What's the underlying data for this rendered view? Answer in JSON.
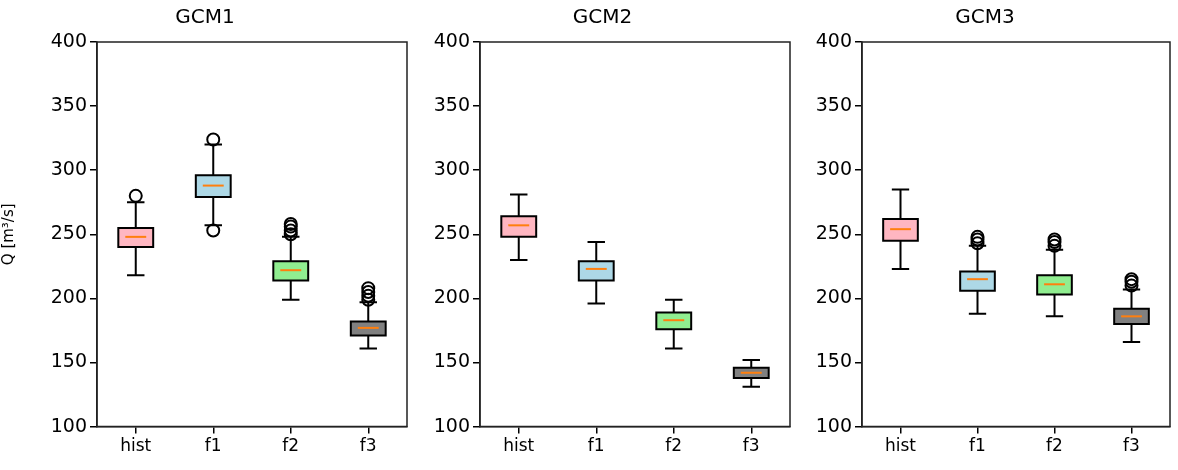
{
  "chart_data": [
    {
      "type": "box",
      "title": "GCM1",
      "ylabel": "Q [m³/s]",
      "categories": [
        "hist",
        "f1",
        "f2",
        "f3"
      ],
      "colors": [
        "#ffb6c1",
        "#add8e6",
        "#90ee90",
        "#808080"
      ],
      "ylim": [
        100,
        400
      ],
      "yticks": [
        100,
        150,
        200,
        250,
        300,
        350,
        400
      ],
      "grid": false,
      "boxes": [
        {
          "low": 218,
          "q1": 240,
          "median": 248,
          "q3": 255,
          "high": 275,
          "outliers": [
            280
          ]
        },
        {
          "low": 257,
          "q1": 279,
          "median": 288,
          "q3": 296,
          "high": 320,
          "outliers": [
            253,
            324
          ]
        },
        {
          "low": 199,
          "q1": 214,
          "median": 222,
          "q3": 229,
          "high": 248,
          "outliers": [
            250,
            253,
            256,
            258
          ]
        },
        {
          "low": 161,
          "q1": 171,
          "median": 177,
          "q3": 182,
          "high": 197,
          "outliers": [
            199,
            202,
            205,
            208
          ]
        }
      ]
    },
    {
      "type": "box",
      "title": "GCM2",
      "categories": [
        "hist",
        "f1",
        "f2",
        "f3"
      ],
      "colors": [
        "#ffb6c1",
        "#add8e6",
        "#90ee90",
        "#808080"
      ],
      "ylim": [
        100,
        400
      ],
      "yticks": [
        100,
        150,
        200,
        250,
        300,
        350,
        400
      ],
      "grid": false,
      "boxes": [
        {
          "low": 230,
          "q1": 248,
          "median": 257,
          "q3": 264,
          "high": 281
        },
        {
          "low": 196,
          "q1": 214,
          "median": 223,
          "q3": 229,
          "high": 244
        },
        {
          "low": 161,
          "q1": 176,
          "median": 183,
          "q3": 189,
          "high": 199
        },
        {
          "low": 131,
          "q1": 138,
          "median": 142,
          "q3": 146,
          "high": 152
        }
      ]
    },
    {
      "type": "box",
      "title": "GCM3",
      "categories": [
        "hist",
        "f1",
        "f2",
        "f3"
      ],
      "colors": [
        "#ffb6c1",
        "#add8e6",
        "#90ee90",
        "#808080"
      ],
      "ylim": [
        100,
        400
      ],
      "yticks": [
        100,
        150,
        200,
        250,
        300,
        350,
        400
      ],
      "grid": false,
      "boxes": [
        {
          "low": 223,
          "q1": 245,
          "median": 254,
          "q3": 262,
          "high": 285
        },
        {
          "low": 188,
          "q1": 206,
          "median": 215,
          "q3": 221,
          "high": 241,
          "outliers": [
            243,
            246,
            248
          ]
        },
        {
          "low": 186,
          "q1": 203,
          "median": 211,
          "q3": 218,
          "high": 238,
          "outliers": [
            241,
            244,
            246
          ]
        },
        {
          "low": 166,
          "q1": 180,
          "median": 186,
          "q3": 192,
          "high": 207,
          "outliers": [
            210,
            213,
            215
          ]
        }
      ]
    }
  ]
}
